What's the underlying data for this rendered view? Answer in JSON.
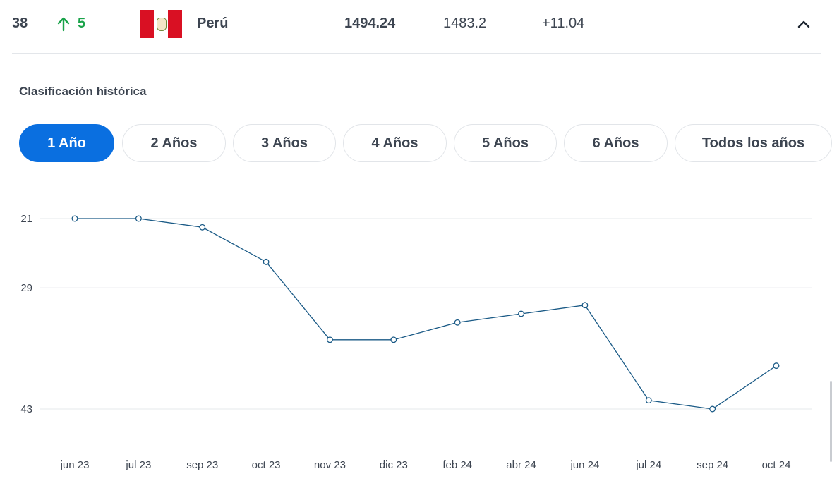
{
  "row": {
    "rank": "38",
    "change": "5",
    "country": "Perú",
    "points": "1494.24",
    "previous_points": "1483.2",
    "difference": "+11.04",
    "change_icon": "arrow-up-icon",
    "collapse_icon": "chevron-up-icon"
  },
  "history": {
    "title": "Clasificación histórica"
  },
  "tabs": [
    {
      "label": "1 Año",
      "active": true
    },
    {
      "label": "2 Años",
      "active": false
    },
    {
      "label": "3 Años",
      "active": false
    },
    {
      "label": "4 Años",
      "active": false
    },
    {
      "label": "5 Años",
      "active": false
    },
    {
      "label": "6 Años",
      "active": false
    },
    {
      "label": "Todos los años",
      "active": false
    }
  ],
  "colors": {
    "accent": "#0a6fe0",
    "positive": "#1aa34a",
    "line": "#1a5a86"
  },
  "chart_data": {
    "type": "line",
    "y_reversed": true,
    "yticks": [
      21,
      29,
      43
    ],
    "ylim": [
      21,
      43
    ],
    "categories": [
      "jun 23",
      "jul 23",
      "sep 23",
      "oct 23",
      "nov 23",
      "dic 23",
      "feb 24",
      "abr 24",
      "jun 24",
      "jul 24",
      "sep 24",
      "oct 24"
    ],
    "values": [
      21,
      21,
      22,
      26,
      35,
      35,
      33,
      32,
      31,
      42,
      43,
      38
    ],
    "grid": true
  }
}
